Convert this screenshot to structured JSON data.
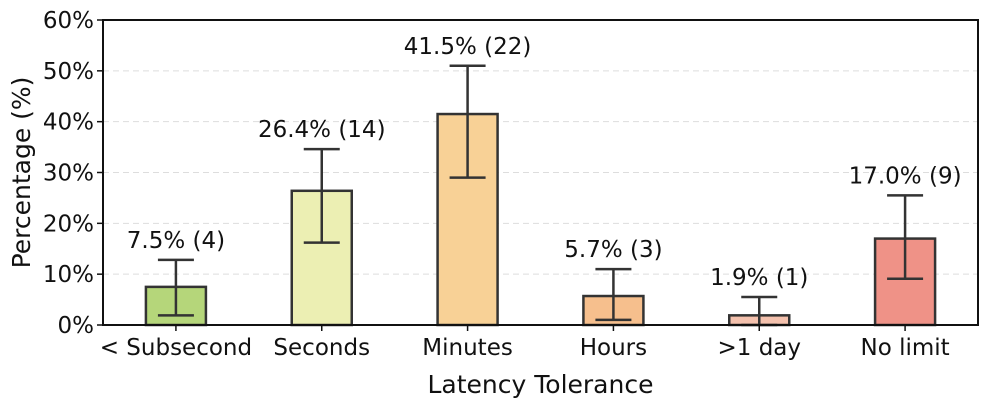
{
  "chart_data": {
    "type": "bar",
    "xlabel": "Latency Tolerance",
    "ylabel": "Percentage (%)",
    "ylim": [
      0,
      60
    ],
    "yticks": [
      0,
      10,
      20,
      30,
      40,
      50,
      60
    ],
    "ytick_labels": [
      "0%",
      "10%",
      "20%",
      "30%",
      "40%",
      "50%",
      "60%"
    ],
    "grid": true,
    "categories": [
      "< Subsecond",
      "Seconds",
      "Minutes",
      "Hours",
      ">1 day",
      "No limit"
    ],
    "values": [
      7.5,
      26.4,
      41.5,
      5.7,
      1.9,
      17.0
    ],
    "error_low": [
      1.9,
      16.2,
      29.0,
      1.0,
      0.0,
      9.1
    ],
    "error_high": [
      12.8,
      34.6,
      51.0,
      11.0,
      5.5,
      25.5
    ],
    "data_labels": [
      "7.5% (4)",
      "26.4% (14)",
      "41.5% (22)",
      "5.7% (3)",
      "1.9% (1)",
      "17.0% (9)"
    ],
    "colors": [
      "#b5d67a",
      "#ecefb3",
      "#f8d196",
      "#f6bf8d",
      "#f4c1ad",
      "#ef9287"
    ]
  }
}
